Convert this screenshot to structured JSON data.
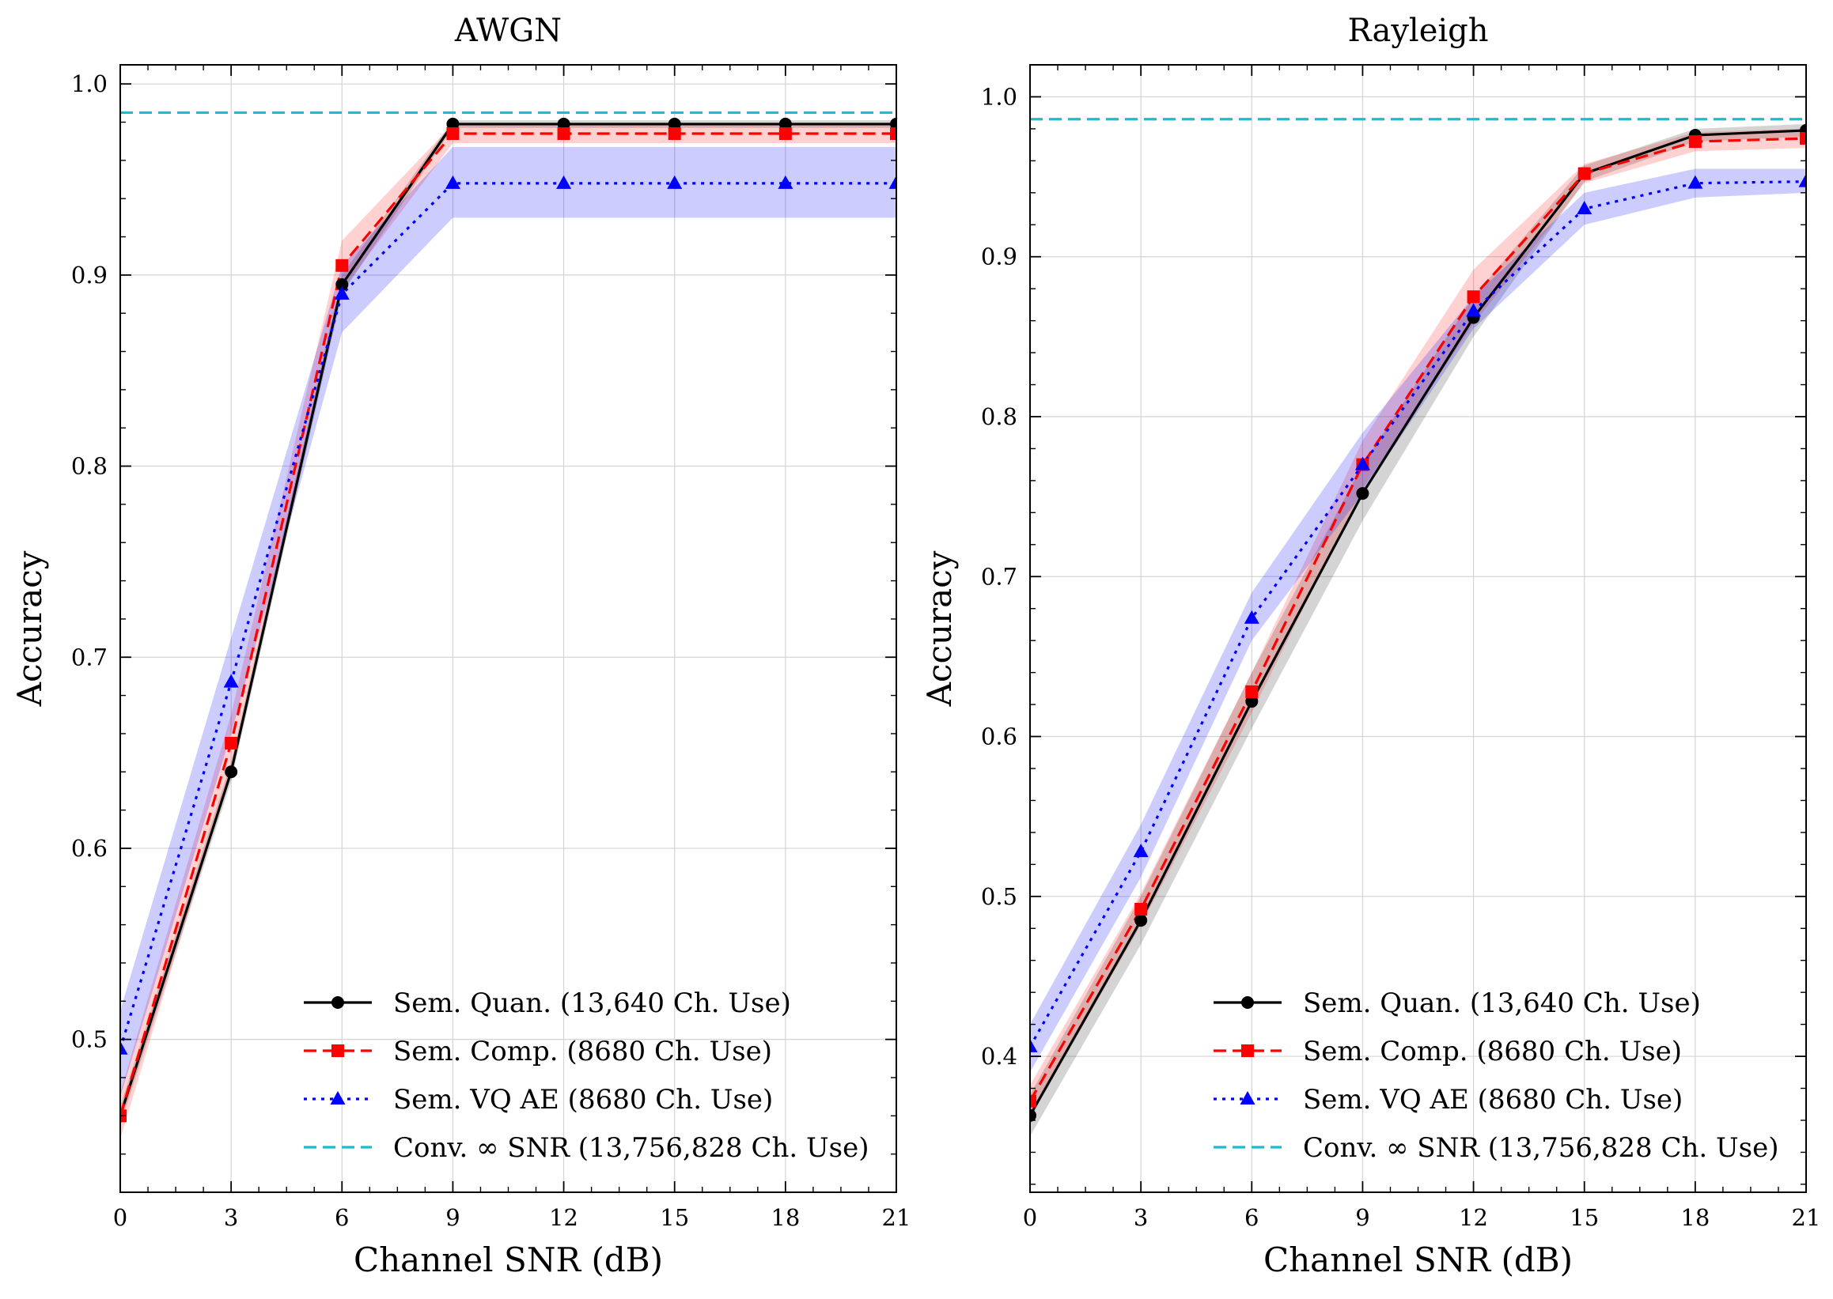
{
  "chart_data": [
    {
      "type": "line",
      "title": "AWGN",
      "xlabel": "Channel SNR (dB)",
      "ylabel": "Accuracy",
      "xlim": [
        0,
        21
      ],
      "ylim": [
        0.42,
        1.01
      ],
      "xticks": [
        0,
        3,
        6,
        9,
        12,
        15,
        18,
        21
      ],
      "xtick_labels": [
        "0",
        "3",
        "6",
        "9",
        "12",
        "15",
        "18",
        "21"
      ],
      "yticks": [
        0.5,
        0.6,
        0.7,
        0.8,
        0.9,
        1.0
      ],
      "ytick_labels": [
        "0.5",
        "0.6",
        "0.7",
        "0.8",
        "0.9",
        "1.0"
      ],
      "grid": true,
      "legend_position": "bottom-right",
      "x": [
        0,
        3,
        6,
        9,
        12,
        15,
        18,
        21
      ],
      "series": [
        {
          "name": "Sem. Quan. (13,640 Ch. Use)",
          "color": "#000000",
          "style": "solid",
          "marker": "circle",
          "values": [
            0.46,
            0.64,
            0.895,
            0.979,
            0.979,
            0.979,
            0.979,
            0.979
          ],
          "band_lower": [
            0.455,
            0.635,
            0.89,
            0.977,
            0.977,
            0.977,
            0.977,
            0.977
          ],
          "band_upper": [
            0.465,
            0.645,
            0.9,
            0.981,
            0.981,
            0.981,
            0.981,
            0.981
          ]
        },
        {
          "name": "Sem. Comp. (8680 Ch. Use)",
          "color": "#ff0000",
          "style": "dashed",
          "marker": "square",
          "values": [
            0.46,
            0.655,
            0.905,
            0.974,
            0.974,
            0.974,
            0.974,
            0.974
          ],
          "band_lower": [
            0.448,
            0.64,
            0.892,
            0.969,
            0.969,
            0.969,
            0.969,
            0.969
          ],
          "band_upper": [
            0.472,
            0.67,
            0.918,
            0.979,
            0.979,
            0.979,
            0.979,
            0.979
          ]
        },
        {
          "name": "Sem. VQ AE (8680 Ch. Use)",
          "color": "#0000ff",
          "style": "dotted",
          "marker": "triangle",
          "values": [
            0.495,
            0.687,
            0.89,
            0.948,
            0.948,
            0.948,
            0.948,
            0.948
          ],
          "band_lower": [
            0.47,
            0.66,
            0.87,
            0.93,
            0.93,
            0.93,
            0.93,
            0.93
          ],
          "band_upper": [
            0.515,
            0.71,
            0.905,
            0.967,
            0.967,
            0.967,
            0.967,
            0.967
          ]
        }
      ],
      "reference_line": {
        "name": "Conv. ∞ SNR (13,756,828 Ch. Use)",
        "color": "#17becf",
        "style": "dashed",
        "y": 0.985
      }
    },
    {
      "type": "line",
      "title": "Rayleigh",
      "xlabel": "Channel SNR (dB)",
      "ylabel": "Accuracy",
      "xlim": [
        0,
        21
      ],
      "ylim": [
        0.315,
        1.02
      ],
      "xticks": [
        0,
        3,
        6,
        9,
        12,
        15,
        18,
        21
      ],
      "xtick_labels": [
        "0",
        "3",
        "6",
        "9",
        "12",
        "15",
        "18",
        "21"
      ],
      "yticks": [
        0.4,
        0.5,
        0.6,
        0.7,
        0.8,
        0.9,
        1.0
      ],
      "ytick_labels": [
        "0.4",
        "0.5",
        "0.6",
        "0.7",
        "0.8",
        "0.9",
        "1.0"
      ],
      "grid": true,
      "legend_position": "bottom-right",
      "x": [
        0,
        3,
        6,
        9,
        12,
        15,
        18,
        21
      ],
      "series": [
        {
          "name": "Sem. Quan. (13,640 Ch. Use)",
          "color": "#000000",
          "style": "solid",
          "marker": "circle",
          "values": [
            0.363,
            0.485,
            0.622,
            0.752,
            0.862,
            0.952,
            0.976,
            0.979
          ],
          "band_lower": [
            0.35,
            0.47,
            0.605,
            0.735,
            0.85,
            0.947,
            0.972,
            0.975
          ],
          "band_upper": [
            0.376,
            0.5,
            0.64,
            0.77,
            0.875,
            0.957,
            0.98,
            0.983
          ]
        },
        {
          "name": "Sem. Comp. (8680 Ch. Use)",
          "color": "#ff0000",
          "style": "dashed",
          "marker": "square",
          "values": [
            0.372,
            0.492,
            0.628,
            0.77,
            0.875,
            0.952,
            0.972,
            0.974
          ],
          "band_lower": [
            0.362,
            0.482,
            0.615,
            0.755,
            0.858,
            0.946,
            0.966,
            0.968
          ],
          "band_upper": [
            0.382,
            0.502,
            0.64,
            0.785,
            0.892,
            0.958,
            0.978,
            0.98
          ]
        },
        {
          "name": "Sem. VQ AE (8680 Ch. Use)",
          "color": "#0000ff",
          "style": "dotted",
          "marker": "triangle",
          "values": [
            0.406,
            0.528,
            0.674,
            0.77,
            0.866,
            0.93,
            0.946,
            0.947
          ],
          "band_lower": [
            0.39,
            0.512,
            0.66,
            0.752,
            0.855,
            0.92,
            0.937,
            0.94
          ],
          "band_upper": [
            0.42,
            0.545,
            0.69,
            0.79,
            0.875,
            0.94,
            0.955,
            0.955
          ]
        }
      ],
      "reference_line": {
        "name": "Conv. ∞ SNR (13,756,828 Ch. Use)",
        "color": "#17becf",
        "style": "dashed",
        "y": 0.986
      }
    }
  ]
}
